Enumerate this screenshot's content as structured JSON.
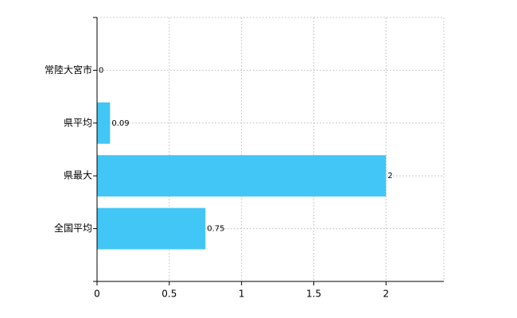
{
  "chart_data": {
    "type": "barh",
    "categories": [
      "常陸大宮市",
      "県平均",
      "県最大",
      "全国平均"
    ],
    "values": [
      0,
      0.09,
      2,
      0.75
    ],
    "color": "#42c6f5",
    "xlim": [
      0,
      2.4
    ],
    "xticks": [
      0,
      0.5,
      1,
      1.5,
      2
    ],
    "grid": true
  }
}
